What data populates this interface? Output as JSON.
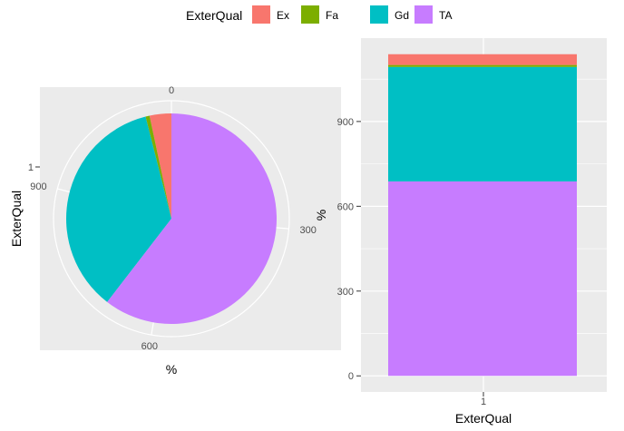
{
  "legend": {
    "title": "ExterQual",
    "items": [
      {
        "label": "Ex",
        "color": "#F8766D"
      },
      {
        "label": "Fa",
        "color": "#7CAE00"
      },
      {
        "label": "Gd",
        "color": "#00BFC4"
      },
      {
        "label": "TA",
        "color": "#C77CFF"
      }
    ]
  },
  "chart_data": [
    {
      "type": "pie",
      "xlabel": "%",
      "ylabel": "ExterQual",
      "category_tick": "1",
      "theta_ticks": [
        "0",
        "300",
        "600",
        "900"
      ],
      "theta_tick_values": [
        0,
        300,
        600,
        900
      ],
      "total": 1138,
      "categories": [
        "Ex",
        "Fa",
        "Gd",
        "TA"
      ],
      "values": [
        38,
        7,
        405,
        688
      ],
      "colors": [
        "#F8766D",
        "#7CAE00",
        "#00BFC4",
        "#C77CFF"
      ],
      "start": "top",
      "direction": "counterclockwise",
      "background": "#EBEBEB"
    },
    {
      "type": "bar",
      "stacked": true,
      "xlabel": "ExterQual",
      "ylabel": "%",
      "categories": [
        "1"
      ],
      "series": [
        {
          "name": "TA",
          "values": [
            688
          ],
          "color": "#C77CFF"
        },
        {
          "name": "Gd",
          "values": [
            405
          ],
          "color": "#00BFC4"
        },
        {
          "name": "Fa",
          "values": [
            7
          ],
          "color": "#7CAE00"
        },
        {
          "name": "Ex",
          "values": [
            38
          ],
          "color": "#F8766D"
        }
      ],
      "yticks": [
        "0",
        "300",
        "600",
        "900"
      ],
      "ytick_values": [
        0,
        300,
        600,
        900
      ],
      "ylim": [
        -57,
        1195
      ],
      "grid": true,
      "background": "#EBEBEB"
    }
  ]
}
